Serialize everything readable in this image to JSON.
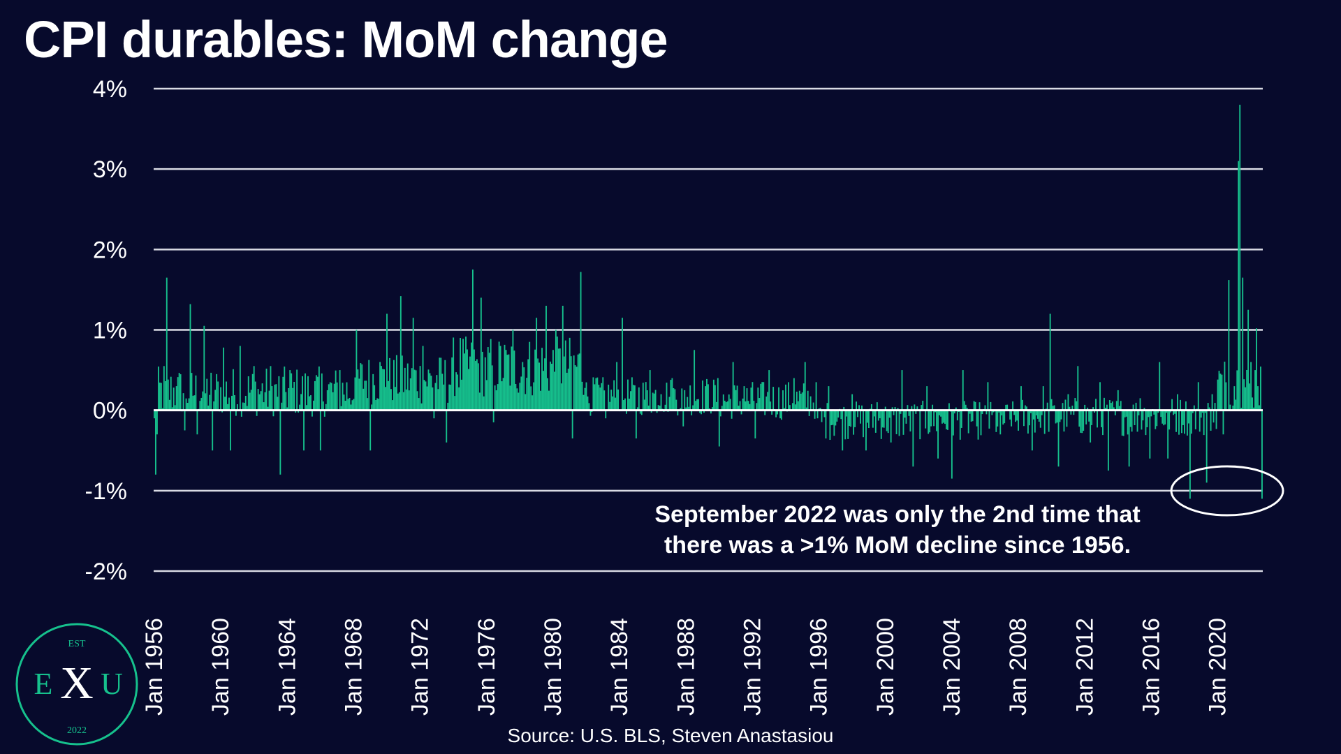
{
  "chart_data": {
    "type": "bar",
    "title": "CPI durables: MoM change",
    "xlabel": "",
    "ylabel": "",
    "ylim": [
      -2,
      4
    ],
    "y_ticks": [
      "4%",
      "3%",
      "2%",
      "1%",
      "0%",
      "-1%",
      "-2%"
    ],
    "y_tick_values": [
      4,
      3,
      2,
      1,
      0,
      -1,
      -2
    ],
    "x_range": [
      "Jan 1956",
      "Sep 2022"
    ],
    "x_tick_labels": [
      "Jan 1956",
      "Jan 1960",
      "Jan 1964",
      "Jan 1968",
      "Jan 1972",
      "Jan 1976",
      "Jan 1980",
      "Jan 1984",
      "Jan 1988",
      "Jan 1992",
      "Jan 1996",
      "Jan 2000",
      "Jan 2004",
      "Jan 2008",
      "Jan 2012",
      "Jan 2016",
      "Jan 2020"
    ],
    "series": [
      {
        "name": "CPI durables MoM % change",
        "color": "#16c18d",
        "start": "Jan 1956",
        "frequency": "monthly",
        "anchors": [
          [
            1956.0,
            -0.1
          ],
          [
            1956.08,
            -0.8
          ],
          [
            1956.17,
            -0.3
          ],
          [
            1956.6,
            0.55
          ],
          [
            1956.75,
            1.65
          ],
          [
            1957.3,
            0.3
          ],
          [
            1957.8,
            -0.25
          ],
          [
            1958.2,
            1.32
          ],
          [
            1958.6,
            -0.3
          ],
          [
            1959.0,
            1.05
          ],
          [
            1959.5,
            -0.5
          ],
          [
            1960.2,
            0.78
          ],
          [
            1960.6,
            -0.5
          ],
          [
            1961.2,
            0.8
          ],
          [
            1962.0,
            0.55
          ],
          [
            1963.0,
            0.55
          ],
          [
            1963.6,
            -0.8
          ],
          [
            1964.2,
            0.5
          ],
          [
            1965.0,
            -0.5
          ],
          [
            1966.0,
            -0.5
          ],
          [
            1967.2,
            0.5
          ],
          [
            1968.2,
            1.0
          ],
          [
            1969.0,
            -0.5
          ],
          [
            1969.6,
            0.6
          ],
          [
            1970.0,
            1.2
          ],
          [
            1970.8,
            1.42
          ],
          [
            1971.6,
            1.15
          ],
          [
            1972.2,
            0.8
          ],
          [
            1972.8,
            -0.1
          ],
          [
            1973.6,
            -0.4
          ],
          [
            1974.4,
            0.9
          ],
          [
            1975.2,
            1.75
          ],
          [
            1975.7,
            1.4
          ],
          [
            1976.4,
            -0.15
          ],
          [
            1976.8,
            0.8
          ],
          [
            1977.6,
            1.0
          ],
          [
            1978.2,
            0.6
          ],
          [
            1979.0,
            1.15
          ],
          [
            1979.6,
            1.3
          ],
          [
            1980.2,
            1.0
          ],
          [
            1980.6,
            1.3
          ],
          [
            1981.2,
            -0.35
          ],
          [
            1981.7,
            1.72
          ],
          [
            1982.6,
            0.4
          ],
          [
            1983.2,
            -0.1
          ],
          [
            1983.8,
            0.6
          ],
          [
            1984.2,
            1.15
          ],
          [
            1985.0,
            -0.35
          ],
          [
            1985.8,
            0.5
          ],
          [
            1986.5,
            0.2
          ],
          [
            1987.2,
            0.4
          ],
          [
            1987.8,
            -0.2
          ],
          [
            1988.5,
            0.75
          ],
          [
            1989.2,
            0.3
          ],
          [
            1990.0,
            -0.45
          ],
          [
            1990.8,
            0.6
          ],
          [
            1991.5,
            0.3
          ],
          [
            1992.2,
            -0.35
          ],
          [
            1993.0,
            0.5
          ],
          [
            1993.7,
            -0.1
          ],
          [
            1994.5,
            0.4
          ],
          [
            1995.2,
            0.6
          ],
          [
            1995.9,
            -0.1
          ],
          [
            1996.6,
            0.3
          ],
          [
            1997.4,
            -0.5
          ],
          [
            1998.0,
            0.2
          ],
          [
            1998.8,
            -0.5
          ],
          [
            1999.5,
            0.1
          ],
          [
            2000.3,
            -0.4
          ],
          [
            2001.0,
            0.5
          ],
          [
            2001.7,
            -0.7
          ],
          [
            2002.5,
            0.3
          ],
          [
            2003.2,
            -0.6
          ],
          [
            2004.0,
            -0.85
          ],
          [
            2004.7,
            0.5
          ],
          [
            2005.5,
            -0.2
          ],
          [
            2006.2,
            0.35
          ],
          [
            2006.9,
            -0.3
          ],
          [
            2007.6,
            -0.2
          ],
          [
            2008.2,
            0.3
          ],
          [
            2008.8,
            -0.5
          ],
          [
            2009.5,
            0.3
          ],
          [
            2009.9,
            1.2
          ],
          [
            2010.4,
            -0.7
          ],
          [
            2011.0,
            0.2
          ],
          [
            2011.6,
            0.55
          ],
          [
            2012.3,
            -0.4
          ],
          [
            2012.9,
            0.35
          ],
          [
            2013.4,
            -0.75
          ],
          [
            2014.0,
            0.25
          ],
          [
            2014.7,
            -0.7
          ],
          [
            2015.3,
            0.15
          ],
          [
            2015.9,
            -0.6
          ],
          [
            2016.5,
            0.6
          ],
          [
            2017.0,
            -0.6
          ],
          [
            2017.6,
            0.2
          ],
          [
            2018.3,
            -1.1
          ],
          [
            2018.8,
            0.35
          ],
          [
            2019.3,
            -0.9
          ],
          [
            2019.7,
            0.2
          ],
          [
            2020.3,
            -0.3
          ],
          [
            2020.7,
            1.62
          ],
          [
            2021.0,
            0.3
          ],
          [
            2021.25,
            3.1
          ],
          [
            2021.33,
            3.8
          ],
          [
            2021.5,
            1.65
          ],
          [
            2021.8,
            1.25
          ],
          [
            2022.0,
            0.6
          ],
          [
            2022.3,
            1.02
          ],
          [
            2022.45,
            0.3
          ],
          [
            2022.67,
            -1.1
          ]
        ]
      }
    ]
  },
  "annotation": {
    "line1": "September 2022 was only the 2nd time that",
    "line2": "there was a >1% MoM decline since 1956."
  },
  "source": "Source: U.S. BLS, Steven Anastasiou",
  "logo": {
    "top": "EST",
    "left": "E",
    "center": "X",
    "right": "U",
    "bottom": "2022"
  },
  "colors": {
    "background": "#070a2c",
    "bar": "#16c18d",
    "grid": "#ffffff",
    "text": "#ffffff"
  }
}
